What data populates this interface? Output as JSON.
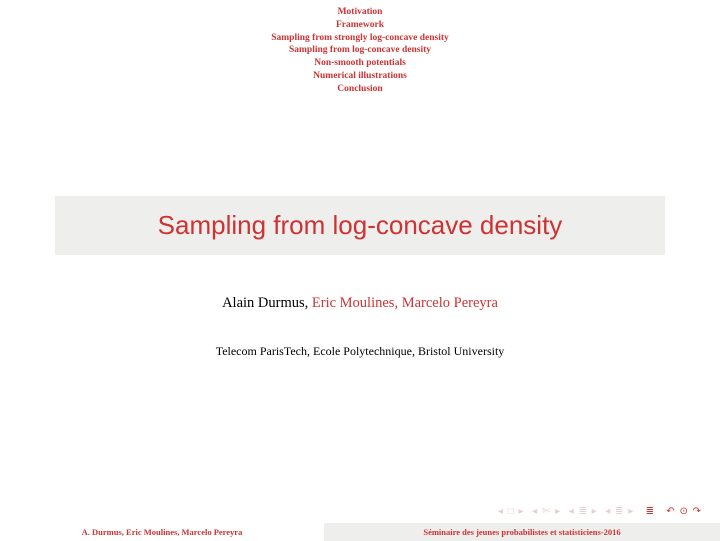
{
  "outline": {
    "items": [
      "Motivation",
      "Framework",
      "Sampling from strongly log-concave density",
      "Sampling from log-concave density",
      "Non-smooth potentials",
      "Numerical illustrations",
      "Conclusion"
    ]
  },
  "title": "Sampling from log-concave density",
  "authors": {
    "main": "Alain Durmus, ",
    "coauthors": "Eric Moulines, Marcelo Pereyra"
  },
  "affiliation": "Telecom ParisTech, Ecole Polytechnique, Bristol University",
  "nav": {
    "s1": "◂ □ ▸",
    "s2": "◂ ✄ ▸",
    "s3": "◂ ≣ ▸",
    "s4": "◂ ≣ ▸",
    "s5": "≣",
    "s6": "↶ ⊙ ↷"
  },
  "footer": {
    "left": "A. Durmus, Eric Moulines, Marcelo Pereyra",
    "right": "Séminaire des jeunes probabilistes et statisticiens-2016"
  },
  "colors": {
    "accent": "#cc3333",
    "block_bg": "#eeeeec",
    "text": "#000000",
    "nav_faint": "#e8cfcf"
  }
}
